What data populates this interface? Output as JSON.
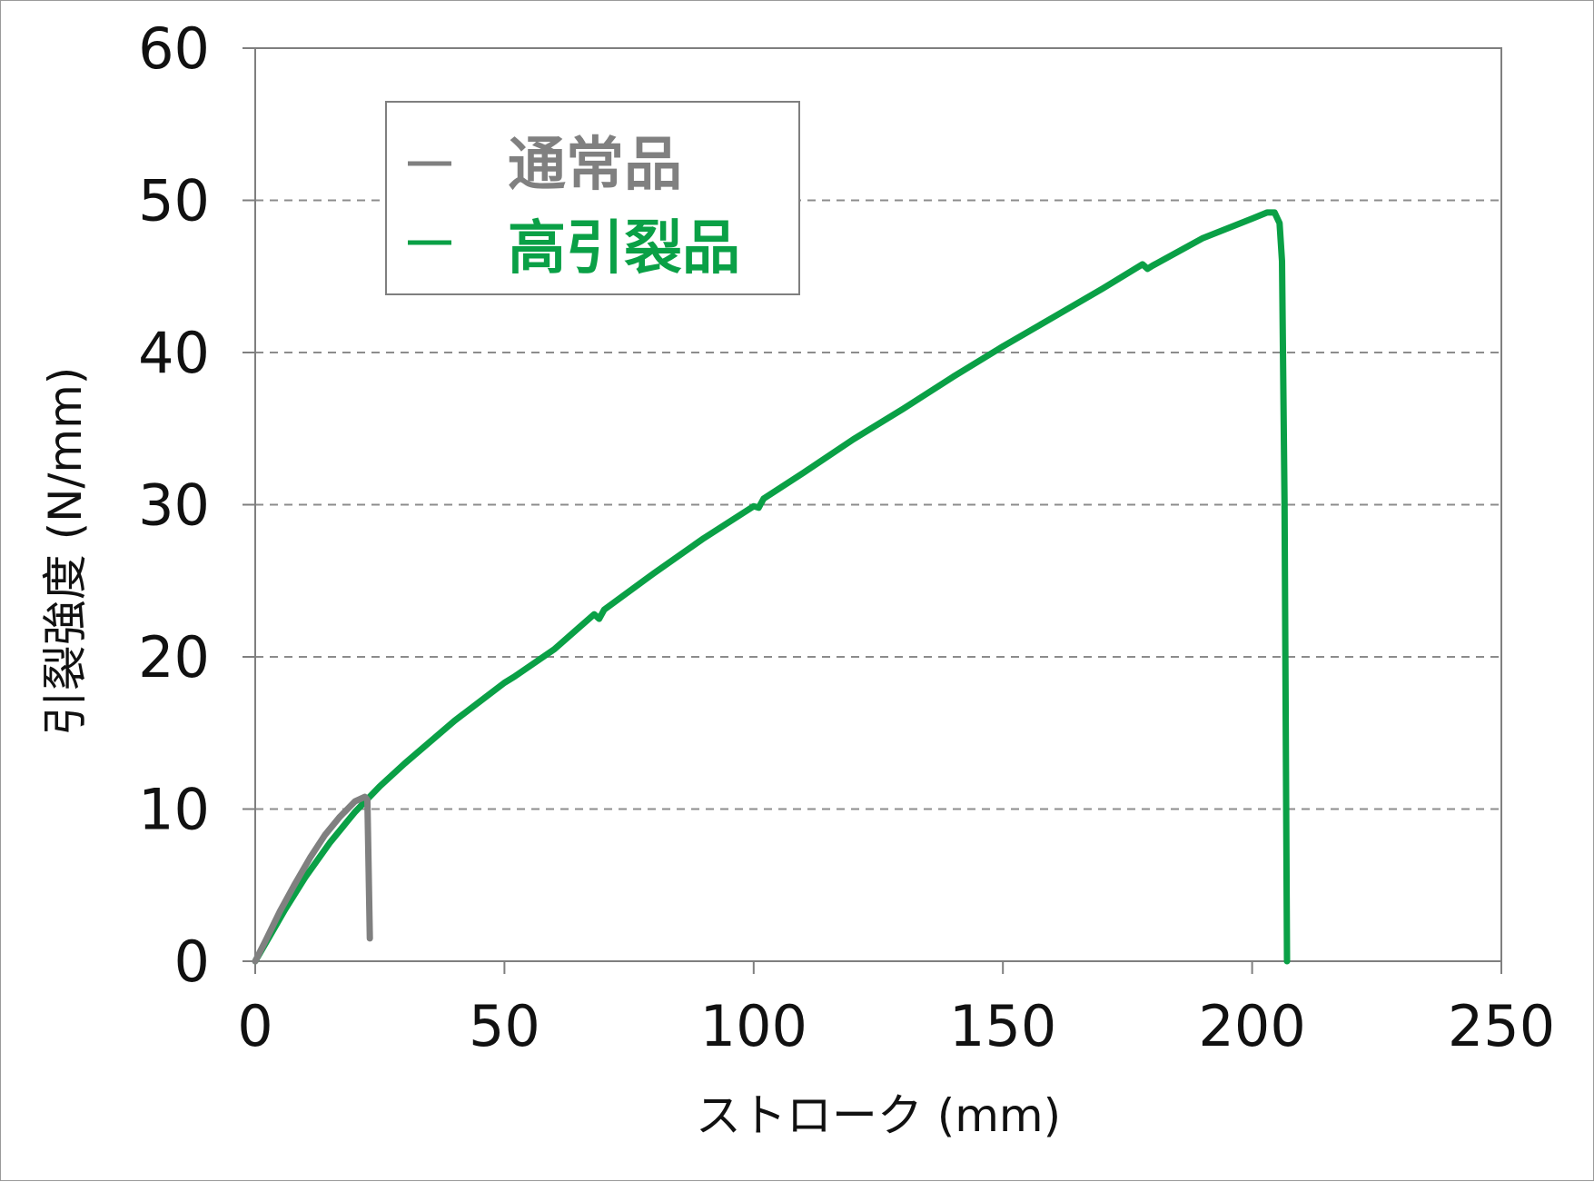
{
  "chart_data": {
    "type": "line",
    "xlabel": "ストローク (mm)",
    "ylabel": "引裂強度 (N/mm)",
    "xlim": [
      0,
      250
    ],
    "ylim": [
      0,
      60
    ],
    "x_ticks": [
      "0",
      "50",
      "100",
      "150",
      "200",
      "250"
    ],
    "y_ticks": [
      "0",
      "10",
      "20",
      "30",
      "40",
      "50",
      "60"
    ],
    "grid": "horizontal dashed",
    "legend_position": "top-left",
    "series": [
      {
        "name": "通常品",
        "color": "#808080",
        "points": [
          [
            0,
            0
          ],
          [
            2,
            1.3
          ],
          [
            5,
            3.3
          ],
          [
            8,
            5.1
          ],
          [
            11,
            6.8
          ],
          [
            14,
            8.3
          ],
          [
            17,
            9.5
          ],
          [
            20,
            10.5
          ],
          [
            22,
            10.8
          ],
          [
            22.5,
            10.6
          ],
          [
            23,
            1.5
          ]
        ]
      },
      {
        "name": "高引裂品",
        "color": "#0aa046",
        "points": [
          [
            0,
            0
          ],
          [
            3,
            1.7
          ],
          [
            6,
            3.4
          ],
          [
            10,
            5.5
          ],
          [
            15,
            7.8
          ],
          [
            20,
            9.8
          ],
          [
            25,
            11.5
          ],
          [
            30,
            13
          ],
          [
            40,
            15.8
          ],
          [
            50,
            18.3
          ],
          [
            51,
            18.5
          ],
          [
            52,
            18.7
          ],
          [
            60,
            20.5
          ],
          [
            68,
            22.8
          ],
          [
            69,
            22.5
          ],
          [
            70,
            23.1
          ],
          [
            80,
            25.5
          ],
          [
            90,
            27.8
          ],
          [
            100,
            29.9
          ],
          [
            101,
            29.8
          ],
          [
            102,
            30.4
          ],
          [
            110,
            32.1
          ],
          [
            120,
            34.3
          ],
          [
            130,
            36.3
          ],
          [
            140,
            38.4
          ],
          [
            150,
            40.4
          ],
          [
            160,
            42.3
          ],
          [
            170,
            44.2
          ],
          [
            178,
            45.8
          ],
          [
            179,
            45.5
          ],
          [
            180,
            45.7
          ],
          [
            190,
            47.5
          ],
          [
            200,
            48.8
          ],
          [
            203,
            49.2
          ],
          [
            204.5,
            49.2
          ],
          [
            205.5,
            48.5
          ],
          [
            206,
            46
          ],
          [
            206.5,
            30
          ],
          [
            207,
            0
          ]
        ]
      }
    ]
  }
}
